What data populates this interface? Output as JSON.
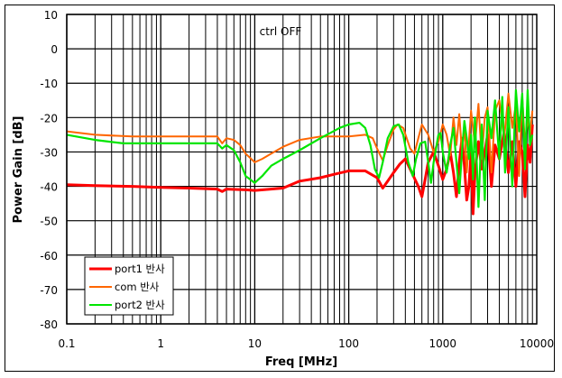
{
  "chart_data": {
    "type": "line",
    "title": "",
    "annotation": "ctrl OFF",
    "xlabel": "Freq [MHz]",
    "ylabel": "Power Gain [dB]",
    "xscale": "log",
    "xlim": [
      0.1,
      10000
    ],
    "ylim": [
      -80,
      10
    ],
    "x_ticks": [
      "0.1",
      "1",
      "10",
      "100",
      "1000",
      "10000"
    ],
    "y_ticks": [
      "10",
      "0",
      "-10",
      "-20",
      "-30",
      "-40",
      "-50",
      "-60",
      "-70",
      "-80"
    ],
    "grid": true,
    "legend_position": "lower-left",
    "series": [
      {
        "name": "port1 반사",
        "color": "#ff0000",
        "points": [
          [
            0.1,
            -39.5
          ],
          [
            0.2,
            -39.8
          ],
          [
            0.5,
            -40.0
          ],
          [
            1,
            -40.3
          ],
          [
            2,
            -40.5
          ],
          [
            4,
            -40.8
          ],
          [
            4.5,
            -41.5
          ],
          [
            5,
            -40.8
          ],
          [
            8,
            -41
          ],
          [
            10,
            -41.2
          ],
          [
            20,
            -40.5
          ],
          [
            30,
            -38.5
          ],
          [
            50,
            -37.5
          ],
          [
            70,
            -36.5
          ],
          [
            100,
            -35.5
          ],
          [
            150,
            -35.5
          ],
          [
            200,
            -37.5
          ],
          [
            230,
            -40.5
          ],
          [
            260,
            -38.5
          ],
          [
            300,
            -36
          ],
          [
            350,
            -33.5
          ],
          [
            400,
            -32
          ],
          [
            450,
            -35
          ],
          [
            550,
            -40
          ],
          [
            600,
            -43
          ],
          [
            650,
            -38
          ],
          [
            700,
            -33
          ],
          [
            800,
            -30
          ],
          [
            900,
            -34
          ],
          [
            1000,
            -38
          ],
          [
            1100,
            -35
          ],
          [
            1200,
            -30
          ],
          [
            1300,
            -36
          ],
          [
            1400,
            -43
          ],
          [
            1500,
            -33
          ],
          [
            1600,
            -26
          ],
          [
            1700,
            -34
          ],
          [
            1800,
            -44
          ],
          [
            1900,
            -40
          ],
          [
            2000,
            -30
          ],
          [
            2100,
            -48
          ],
          [
            2200,
            -36
          ],
          [
            2400,
            -27
          ],
          [
            2600,
            -35
          ],
          [
            2800,
            -30
          ],
          [
            3000,
            -25
          ],
          [
            3300,
            -40
          ],
          [
            3600,
            -28
          ],
          [
            4000,
            -32
          ],
          [
            4500,
            -24
          ],
          [
            5000,
            -36
          ],
          [
            5500,
            -27
          ],
          [
            6000,
            -40
          ],
          [
            6500,
            -27
          ],
          [
            7000,
            -30
          ],
          [
            7500,
            -43
          ],
          [
            8000,
            -28
          ],
          [
            8500,
            -33
          ],
          [
            9000,
            -22
          ]
        ]
      },
      {
        "name": "com 반사",
        "color": "#ff6600",
        "points": [
          [
            0.1,
            -24
          ],
          [
            0.2,
            -25
          ],
          [
            0.5,
            -25.5
          ],
          [
            1,
            -25.5
          ],
          [
            2,
            -25.5
          ],
          [
            4,
            -25.5
          ],
          [
            4.5,
            -27.5
          ],
          [
            5,
            -26
          ],
          [
            6,
            -26.5
          ],
          [
            7,
            -28
          ],
          [
            8,
            -30.5
          ],
          [
            10,
            -33
          ],
          [
            12,
            -32
          ],
          [
            15,
            -30.5
          ],
          [
            20,
            -28.5
          ],
          [
            30,
            -26.5
          ],
          [
            50,
            -25.5
          ],
          [
            100,
            -25.5
          ],
          [
            150,
            -25
          ],
          [
            180,
            -26
          ],
          [
            200,
            -29
          ],
          [
            230,
            -32.5
          ],
          [
            260,
            -28
          ],
          [
            300,
            -23.5
          ],
          [
            330,
            -22
          ],
          [
            380,
            -23
          ],
          [
            450,
            -29
          ],
          [
            500,
            -30.5
          ],
          [
            550,
            -26
          ],
          [
            600,
            -22
          ],
          [
            700,
            -25
          ],
          [
            800,
            -30
          ],
          [
            900,
            -27
          ],
          [
            1000,
            -22
          ],
          [
            1100,
            -25
          ],
          [
            1200,
            -31
          ],
          [
            1300,
            -20
          ],
          [
            1400,
            -28
          ],
          [
            1500,
            -19
          ],
          [
            1600,
            -30
          ],
          [
            1700,
            -22
          ],
          [
            1800,
            -36
          ],
          [
            2000,
            -18
          ],
          [
            2200,
            -28
          ],
          [
            2400,
            -16
          ],
          [
            2600,
            -32
          ],
          [
            2800,
            -20
          ],
          [
            3000,
            -17
          ],
          [
            3300,
            -36
          ],
          [
            3600,
            -18
          ],
          [
            4000,
            -15
          ],
          [
            4500,
            -26
          ],
          [
            5000,
            -13
          ],
          [
            5500,
            -23
          ],
          [
            6000,
            -16
          ],
          [
            6500,
            -37
          ],
          [
            7000,
            -14
          ],
          [
            7500,
            -28
          ],
          [
            8000,
            -20
          ],
          [
            8500,
            -25
          ],
          [
            9000,
            -18
          ]
        ]
      },
      {
        "name": "port2 반사",
        "color": "#00e600",
        "points": [
          [
            0.1,
            -25
          ],
          [
            0.2,
            -26.5
          ],
          [
            0.4,
            -27.5
          ],
          [
            1,
            -27.5
          ],
          [
            2,
            -27.5
          ],
          [
            4,
            -27.5
          ],
          [
            4.5,
            -29
          ],
          [
            5,
            -28
          ],
          [
            6,
            -29.5
          ],
          [
            7,
            -33
          ],
          [
            8,
            -37
          ],
          [
            10,
            -39
          ],
          [
            12,
            -37
          ],
          [
            15,
            -34
          ],
          [
            20,
            -32
          ],
          [
            30,
            -29.5
          ],
          [
            50,
            -26
          ],
          [
            80,
            -23
          ],
          [
            100,
            -22
          ],
          [
            130,
            -21.5
          ],
          [
            150,
            -23
          ],
          [
            170,
            -28
          ],
          [
            190,
            -35
          ],
          [
            210,
            -37.5
          ],
          [
            230,
            -33
          ],
          [
            260,
            -26
          ],
          [
            300,
            -22.5
          ],
          [
            340,
            -22
          ],
          [
            380,
            -25
          ],
          [
            430,
            -33
          ],
          [
            480,
            -37
          ],
          [
            520,
            -32
          ],
          [
            580,
            -27.5
          ],
          [
            650,
            -27
          ],
          [
            700,
            -33
          ],
          [
            750,
            -39
          ],
          [
            800,
            -33
          ],
          [
            900,
            -25
          ],
          [
            950,
            -24.5
          ],
          [
            1000,
            -30
          ],
          [
            1100,
            -36
          ],
          [
            1200,
            -28
          ],
          [
            1300,
            -23
          ],
          [
            1400,
            -33
          ],
          [
            1500,
            -42
          ],
          [
            1600,
            -30
          ],
          [
            1700,
            -21
          ],
          [
            1800,
            -26
          ],
          [
            1900,
            -32
          ],
          [
            2000,
            -25
          ],
          [
            2100,
            -38
          ],
          [
            2200,
            -20
          ],
          [
            2400,
            -46
          ],
          [
            2600,
            -22
          ],
          [
            2800,
            -44
          ],
          [
            3000,
            -18
          ],
          [
            3300,
            -26
          ],
          [
            3600,
            -15
          ],
          [
            4000,
            -32
          ],
          [
            4300,
            -14
          ],
          [
            4600,
            -36
          ],
          [
            5000,
            -17
          ],
          [
            5500,
            -40
          ],
          [
            6000,
            -12
          ],
          [
            6500,
            -24
          ],
          [
            7000,
            -13
          ],
          [
            7500,
            -35
          ],
          [
            8000,
            -12
          ],
          [
            8500,
            -28
          ],
          [
            9000,
            -25
          ]
        ]
      }
    ]
  }
}
